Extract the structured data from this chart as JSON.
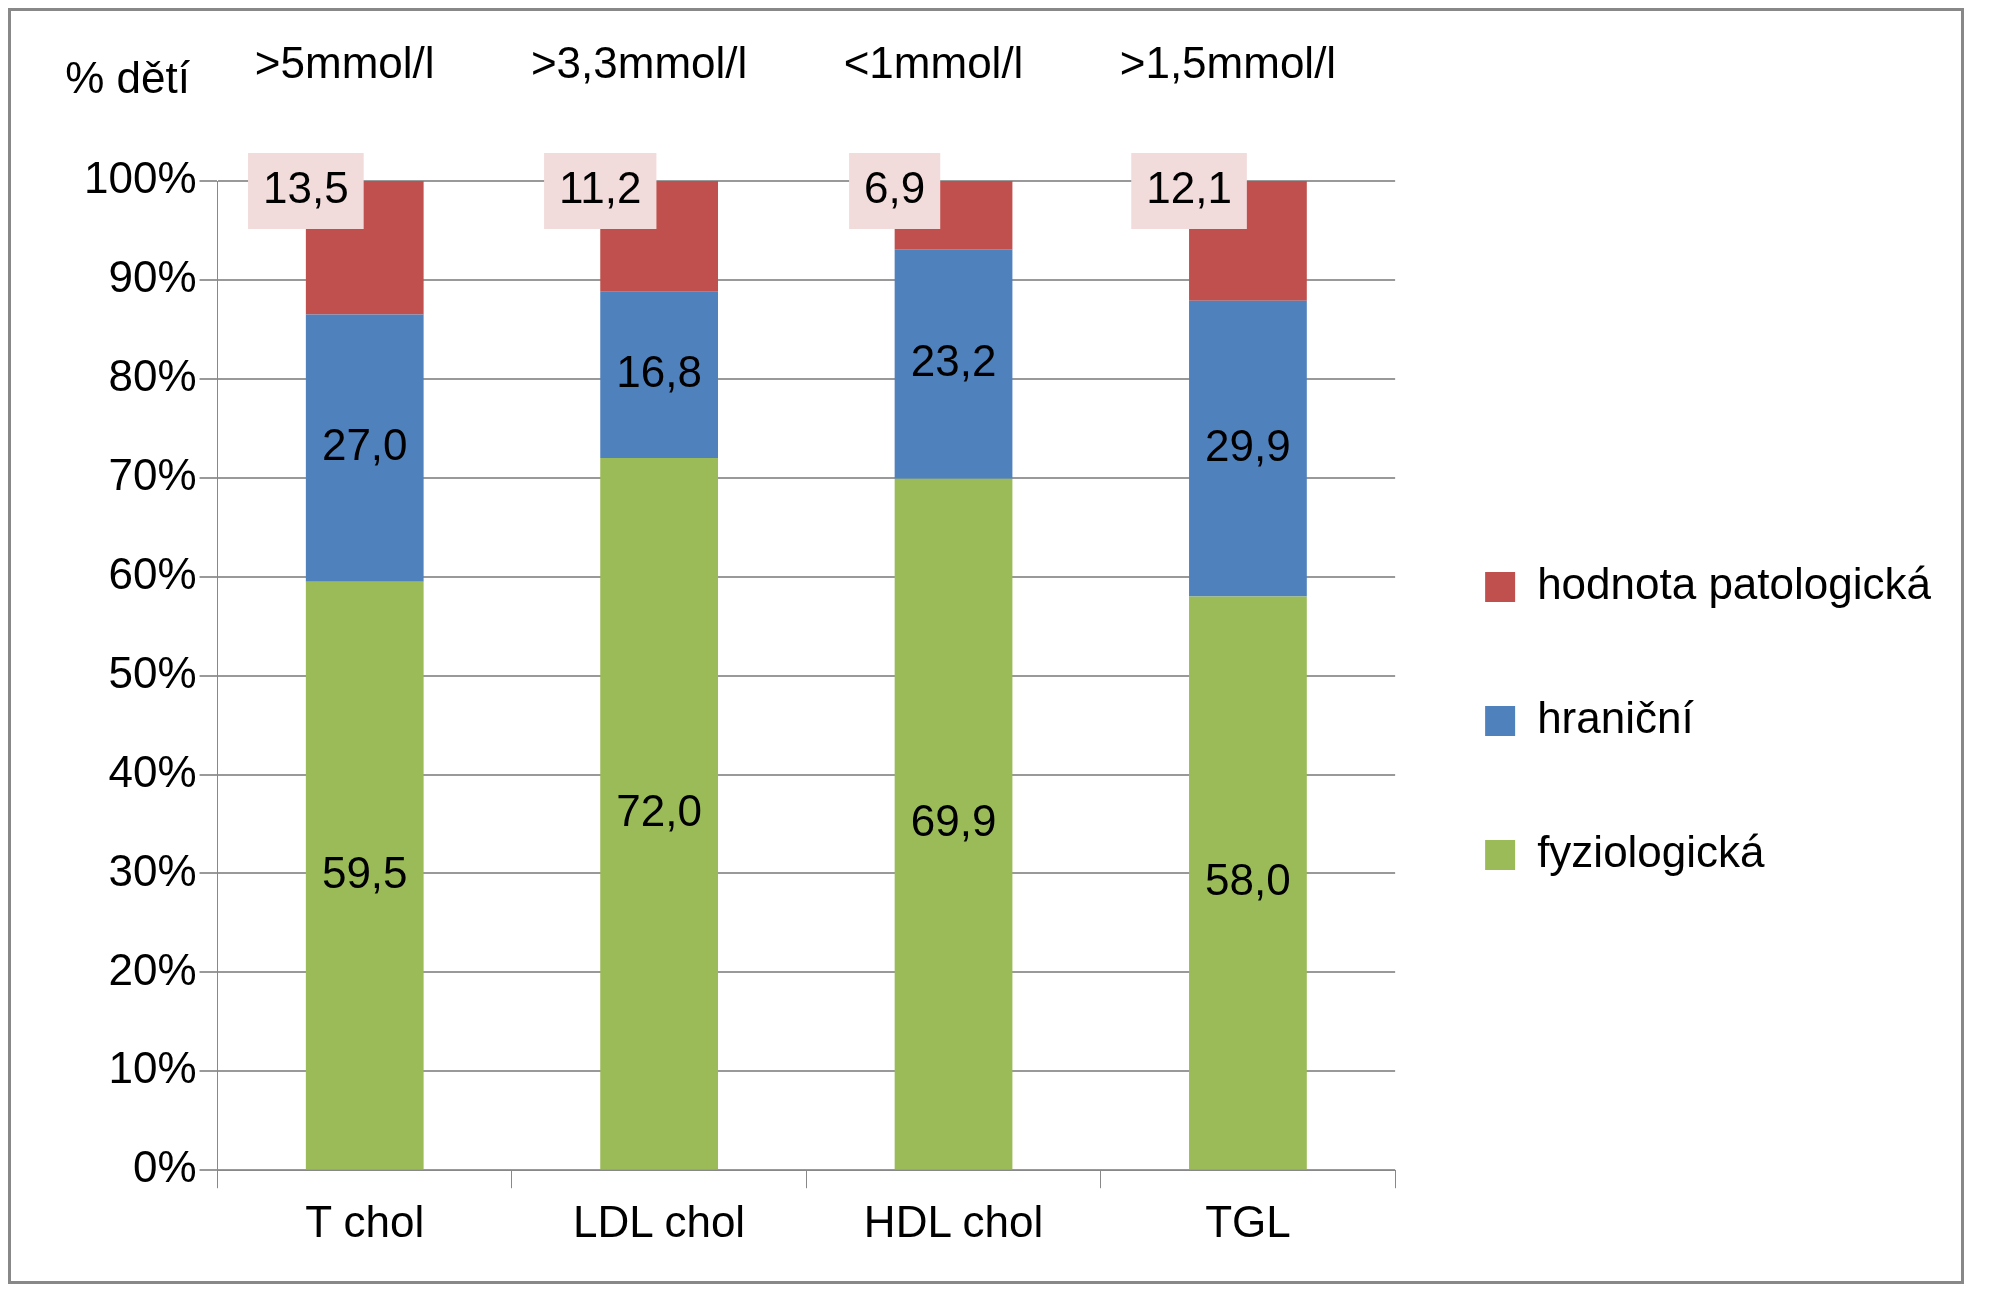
{
  "chart_data": {
    "type": "bar",
    "stacked": true,
    "ylabel": "% dětí",
    "categories": [
      "T chol",
      "LDL chol",
      "HDL chol",
      "TGL"
    ],
    "series": [
      {
        "name": "fyziologická",
        "color": "#9bbb59",
        "values": [
          59.5,
          72.0,
          69.9,
          58.0
        ],
        "value_labels": [
          "59,5",
          "72,0",
          "69,9",
          "58,0"
        ]
      },
      {
        "name": "hraniční",
        "color": "#4f81bd",
        "values": [
          27.0,
          16.8,
          23.2,
          29.9
        ],
        "value_labels": [
          "27,0",
          "16,8",
          "23,2",
          "29,9"
        ]
      },
      {
        "name": "hodnota patologická",
        "color": "#c0504d",
        "values": [
          13.5,
          11.2,
          6.9,
          12.1
        ],
        "value_labels": [
          "13,5",
          "11,2",
          "6,9",
          "12,1"
        ]
      }
    ],
    "ylim": [
      0,
      100
    ],
    "yticks": [
      {
        "value": 0,
        "label": "0%"
      },
      {
        "value": 10,
        "label": "10%"
      },
      {
        "value": 20,
        "label": "20%"
      },
      {
        "value": 30,
        "label": "30%"
      },
      {
        "value": 40,
        "label": "40%"
      },
      {
        "value": 50,
        "label": "50%"
      },
      {
        "value": 60,
        "label": "60%"
      },
      {
        "value": 70,
        "label": "70%"
      },
      {
        "value": 80,
        "label": "80%"
      },
      {
        "value": 90,
        "label": "90%"
      },
      {
        "value": 100,
        "label": "100%"
      }
    ],
    "grid": "y",
    "legend": "right",
    "annotations": [
      ">5mmol/l",
      ">3,3mmol/l",
      "<1mmol/l",
      ">1,5mmol/l"
    ]
  }
}
